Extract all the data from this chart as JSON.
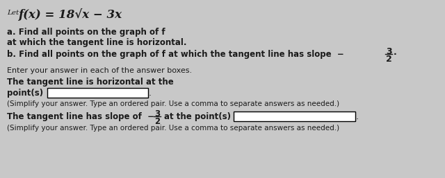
{
  "bg_color": "#c8c8c8",
  "text_color": "#1a1a1a",
  "title_let": "Let ",
  "title_func": "f(x) = 18√x − 3x",
  "line_a1": "a. Find all points on the graph of f",
  "line_a2": "at which the tangent line is horizontal.",
  "line_b": "b. Find all points on the graph of f at which the tangent line has slope",
  "slope_sign": "−",
  "slope_num": "3",
  "slope_den": "2",
  "enter": "Enter your answer in each of the answer boxes.",
  "horiz1": "The tangent line is horizontal at the",
  "horiz2": "point(s)",
  "simplify1": "(Simplify your answer. Type an ordered pair. Use a comma to separate answers as needed.)",
  "slopeline": "The tangent line has slope of",
  "slope_sign2": "−",
  "slope_num2": "3",
  "slope_den2": "2",
  "atpoints": "at the point(s)",
  "simplify2": "(Simplify your answer. Type an ordered pair. Use a comma to separate answers as needed.)",
  "figw": 6.4,
  "figh": 2.57,
  "dpi": 100
}
